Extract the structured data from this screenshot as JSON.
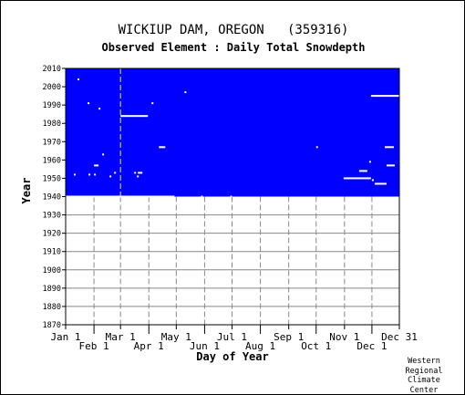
{
  "title": "WICKIUP DAM, OREGON   (359316)",
  "subtitle": "Observed Element : Daily Total Snowdepth",
  "credit": "Western\nRegional\nClimate\nCenter",
  "chart_data": {
    "type": "heatmap",
    "xlabel": "Day of Year",
    "ylabel": "Year",
    "xlim": [
      1,
      366
    ],
    "ylim": [
      1870,
      2010
    ],
    "x_ticks": [
      {
        "label": "Jan 1",
        "day": 1,
        "row": 1
      },
      {
        "label": "Feb 1",
        "day": 32,
        "row": 2
      },
      {
        "label": "Mar 1",
        "day": 61,
        "row": 1
      },
      {
        "label": "Apr 1",
        "day": 92,
        "row": 2
      },
      {
        "label": "May 1",
        "day": 122,
        "row": 1
      },
      {
        "label": "Jun 1",
        "day": 153,
        "row": 2
      },
      {
        "label": "Jul 1",
        "day": 183,
        "row": 1
      },
      {
        "label": "Aug 1",
        "day": 214,
        "row": 2
      },
      {
        "label": "Sep 1",
        "day": 245,
        "row": 1
      },
      {
        "label": "Oct 1",
        "day": 275,
        "row": 2
      },
      {
        "label": "Nov 1",
        "day": 306,
        "row": 1
      },
      {
        "label": "Dec 1",
        "day": 336,
        "row": 2
      },
      {
        "label": "Dec 31",
        "day": 366,
        "row": 1
      }
    ],
    "y_ticks": [
      1870,
      1880,
      1890,
      1900,
      1910,
      1920,
      1930,
      1940,
      1950,
      1960,
      1970,
      1980,
      1990,
      2000,
      2010
    ],
    "grid": true,
    "colors": {
      "observed": "#0000ff",
      "missing": "#ffffff",
      "grid": "#888888"
    },
    "record_period": {
      "start_year": 1940,
      "end_year": 2010,
      "day_start": 1,
      "day_end": 366
    },
    "missing_segments": [
      {
        "year": 1940,
        "start_day": 1,
        "end_day": 120
      },
      {
        "year": 1940,
        "start_day": 149,
        "end_day": 150
      },
      {
        "year": 1940,
        "start_day": 181,
        "end_day": 183
      },
      {
        "year": 2004,
        "start_day": 14,
        "end_day": 15
      },
      {
        "year": 1997,
        "start_day": 131,
        "end_day": 132
      },
      {
        "year": 1995,
        "start_day": 335,
        "end_day": 366
      },
      {
        "year": 1991,
        "start_day": 25,
        "end_day": 26
      },
      {
        "year": 1991,
        "start_day": 95,
        "end_day": 96
      },
      {
        "year": 1988,
        "start_day": 37,
        "end_day": 38
      },
      {
        "year": 1984,
        "start_day": 61,
        "end_day": 91
      },
      {
        "year": 1967,
        "start_day": 103,
        "end_day": 110
      },
      {
        "year": 1967,
        "start_day": 275,
        "end_day": 276
      },
      {
        "year": 1967,
        "start_day": 350,
        "end_day": 360
      },
      {
        "year": 1963,
        "start_day": 41,
        "end_day": 42
      },
      {
        "year": 1959,
        "start_day": 333,
        "end_day": 334
      },
      {
        "year": 1957,
        "start_day": 32,
        "end_day": 37
      },
      {
        "year": 1957,
        "start_day": 352,
        "end_day": 361
      },
      {
        "year": 1954,
        "start_day": 322,
        "end_day": 331
      },
      {
        "year": 1953,
        "start_day": 54,
        "end_day": 55
      },
      {
        "year": 1953,
        "start_day": 76,
        "end_day": 77
      },
      {
        "year": 1953,
        "start_day": 80,
        "end_day": 85
      },
      {
        "year": 1952,
        "start_day": 10,
        "end_day": 11
      },
      {
        "year": 1952,
        "start_day": 26,
        "end_day": 27
      },
      {
        "year": 1952,
        "start_day": 32,
        "end_day": 33
      },
      {
        "year": 1951,
        "start_day": 49,
        "end_day": 50
      },
      {
        "year": 1951,
        "start_day": 79,
        "end_day": 80
      },
      {
        "year": 1950,
        "start_day": 305,
        "end_day": 335
      },
      {
        "year": 1949,
        "start_day": 336,
        "end_day": 337
      },
      {
        "year": 1947,
        "start_day": 339,
        "end_day": 352
      }
    ]
  }
}
